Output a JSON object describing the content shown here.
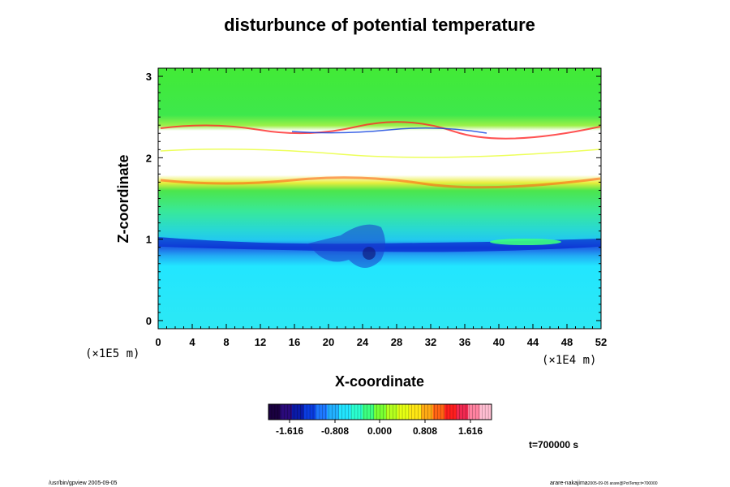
{
  "chart_data": {
    "type": "heatmap",
    "title": "disturbunce of potential temperature",
    "xlabel": "X-coordinate",
    "ylabel": "Z-coordinate",
    "xlim": [
      0,
      52
    ],
    "ylim": [
      -0.1,
      3.1
    ],
    "x_ticks": [
      "0",
      "4",
      "8",
      "12",
      "16",
      "20",
      "24",
      "28",
      "32",
      "36",
      "40",
      "44",
      "48",
      "52"
    ],
    "y_ticks": [
      "0",
      "1",
      "2",
      "3"
    ],
    "x_unit": "(×1E4 m)",
    "y_unit": "(×1E5 m)",
    "colorbar": {
      "ticks": [
        "-1.616",
        "-0.808",
        "0.000",
        "0.808",
        "1.616"
      ],
      "colors": [
        "#1a0040",
        "#2a0a7a",
        "#0a1aa8",
        "#0a3ce0",
        "#1e78ff",
        "#22b0ff",
        "#22e4ff",
        "#2affd0",
        "#3cff80",
        "#78ff32",
        "#b4ff1e",
        "#e6ff14",
        "#ffe614",
        "#ffaa14",
        "#ff6414",
        "#ff1e1e",
        "#f02850",
        "#ff82a0",
        "#ffbed2"
      ]
    },
    "time_label": "t=700000 s"
  },
  "footer": {
    "left": "/usr/bin/gpview 2005-09-05",
    "right_main": "arare-nakajima",
    "right_sub": "2005-09-05 arare@PotTemp:t=700000"
  }
}
